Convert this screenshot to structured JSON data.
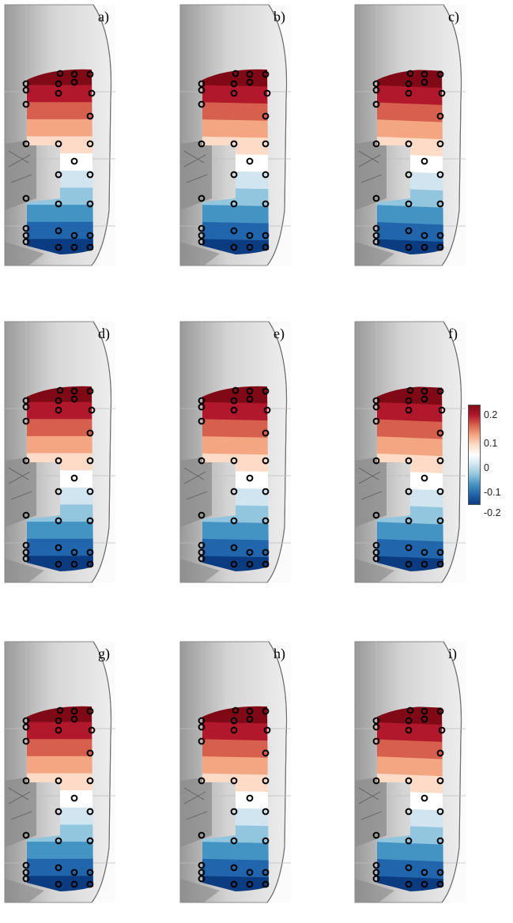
{
  "panels": [
    {
      "id": "a",
      "label": "a)"
    },
    {
      "id": "b",
      "label": "b)"
    },
    {
      "id": "c",
      "label": "c)"
    },
    {
      "id": "d",
      "label": "d)"
    },
    {
      "id": "e",
      "label": "e)"
    },
    {
      "id": "f",
      "label": "f)"
    },
    {
      "id": "g",
      "label": "g)"
    },
    {
      "id": "h",
      "label": "h)"
    },
    {
      "id": "i",
      "label": "i)"
    }
  ],
  "colorbar": {
    "ticks": [
      "0.2",
      "0.1",
      "0",
      "-0.1",
      "-0.2"
    ],
    "colors": [
      "#7f0a16",
      "#b2182b",
      "#d6604d",
      "#f4a582",
      "#fddbc7",
      "#ffffff",
      "#d1e5f0",
      "#92c5de",
      "#4393c3",
      "#2166ac",
      "#0b3b80"
    ]
  }
}
